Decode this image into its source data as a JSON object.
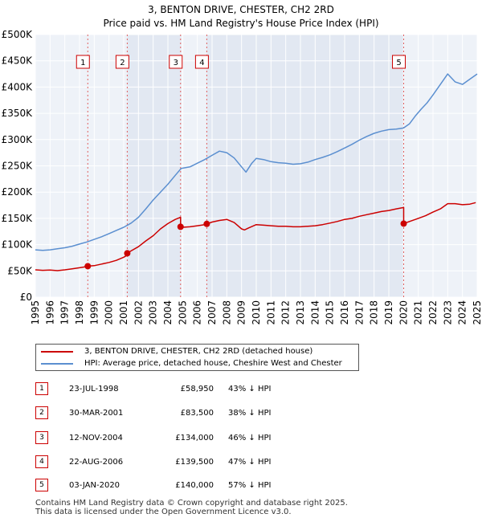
{
  "chart_data": {
    "type": "line",
    "title": "3, BENTON DRIVE, CHESTER, CH2 2RD",
    "subtitle": "Price paid vs. HM Land Registry's House Price Index (HPI)",
    "xlabel": "",
    "ylabel": "",
    "xlim": [
      1995.0,
      2025.0
    ],
    "ylim": [
      0,
      500000
    ],
    "y_ticks": [
      0,
      50000,
      100000,
      150000,
      200000,
      250000,
      300000,
      350000,
      400000,
      450000,
      500000
    ],
    "y_tick_labels": [
      "£0",
      "£50K",
      "£100K",
      "£150K",
      "£200K",
      "£250K",
      "£300K",
      "£350K",
      "£400K",
      "£450K",
      "£500K"
    ],
    "x_ticks": [
      1995,
      1996,
      1997,
      1998,
      1999,
      2000,
      2001,
      2002,
      2003,
      2004,
      2005,
      2006,
      2007,
      2008,
      2009,
      2010,
      2011,
      2012,
      2013,
      2014,
      2015,
      2016,
      2017,
      2018,
      2019,
      2020,
      2021,
      2022,
      2023,
      2024,
      2025
    ],
    "x_tick_labels": [
      "1995",
      "1996",
      "1997",
      "1998",
      "1999",
      "2000",
      "2001",
      "2002",
      "2003",
      "2004",
      "2005",
      "2006",
      "2007",
      "2008",
      "2009",
      "2010",
      "2011",
      "2012",
      "2013",
      "2014",
      "2015",
      "2016",
      "2017",
      "2018",
      "2019",
      "2020",
      "2021",
      "2022",
      "2023",
      "2024",
      "2025"
    ],
    "grid": true,
    "series": [
      {
        "name": "3, BENTON DRIVE, CHESTER, CH2 2RD (detached house)",
        "color": "#cc0000",
        "x": [
          1995.0,
          1995.5,
          1996.0,
          1996.5,
          1997.0,
          1997.5,
          1998.0,
          1998.56,
          1998.56,
          1999.0,
          1999.5,
          2000.0,
          2000.5,
          2001.0,
          2001.24,
          2001.24,
          2001.5,
          2002.0,
          2002.5,
          2003.0,
          2003.5,
          2004.0,
          2004.5,
          2004.86,
          2004.86,
          2005.0,
          2005.5,
          2006.0,
          2006.5,
          2006.64,
          2006.64,
          2007.0,
          2007.5,
          2008.0,
          2008.5,
          2009.0,
          2009.2,
          2009.5,
          2010.0,
          2010.5,
          2011.0,
          2011.5,
          2012.0,
          2012.5,
          2013.0,
          2013.5,
          2014.0,
          2014.5,
          2015.0,
          2015.5,
          2016.0,
          2016.5,
          2017.0,
          2017.5,
          2018.0,
          2018.5,
          2019.0,
          2019.5,
          2019.9,
          2020.01,
          2020.01,
          2020.5,
          2021.0,
          2021.5,
          2022.0,
          2022.5,
          2023.0,
          2023.5,
          2024.0,
          2024.5,
          2024.9
        ],
        "values": [
          52000,
          51000,
          51500,
          50500,
          52000,
          54000,
          56000,
          58500,
          58950,
          60000,
          63000,
          66000,
          70000,
          76000,
          80000,
          83500,
          88000,
          96000,
          107000,
          117000,
          130000,
          140000,
          148000,
          152000,
          134000,
          133000,
          134000,
          136000,
          138000,
          139000,
          139500,
          143000,
          146000,
          148000,
          142000,
          130000,
          128000,
          132000,
          138000,
          137000,
          136000,
          135000,
          135000,
          134000,
          134000,
          135000,
          136000,
          138000,
          141000,
          144000,
          148000,
          150000,
          154000,
          157000,
          160000,
          163000,
          165000,
          168000,
          170000,
          171000,
          140000,
          145000,
          150000,
          155000,
          162000,
          168000,
          178000,
          178000,
          176000,
          177000,
          180000
        ]
      },
      {
        "name": "HPI: Average price, detached house, Cheshire West and Chester",
        "color": "#5b8fd0",
        "x": [
          1995.0,
          1995.5,
          1996.0,
          1996.5,
          1997.0,
          1997.5,
          1998.0,
          1998.5,
          1999.0,
          1999.5,
          2000.0,
          2000.5,
          2001.0,
          2001.5,
          2002.0,
          2002.5,
          2003.0,
          2003.5,
          2004.0,
          2004.5,
          2004.9,
          2005.5,
          2006.0,
          2006.5,
          2007.0,
          2007.5,
          2008.0,
          2008.5,
          2009.0,
          2009.3,
          2009.7,
          2010.0,
          2010.5,
          2011.0,
          2011.5,
          2012.0,
          2012.5,
          2013.0,
          2013.5,
          2014.0,
          2014.5,
          2015.0,
          2015.5,
          2016.0,
          2016.5,
          2017.0,
          2017.5,
          2018.0,
          2018.5,
          2019.0,
          2019.5,
          2020.0,
          2020.4,
          2020.8,
          2021.2,
          2021.6,
          2022.0,
          2022.5,
          2023.0,
          2023.5,
          2024.0,
          2024.5,
          2025.0
        ],
        "values": [
          90000,
          89000,
          90000,
          92000,
          94000,
          97000,
          101000,
          105000,
          110000,
          115000,
          121000,
          127000,
          133000,
          141000,
          152000,
          168000,
          185000,
          200000,
          215000,
          232000,
          245000,
          248000,
          255000,
          262000,
          270000,
          278000,
          275000,
          265000,
          248000,
          238000,
          255000,
          264000,
          262000,
          258000,
          256000,
          255000,
          253000,
          254000,
          257000,
          262000,
          266000,
          271000,
          277000,
          284000,
          291000,
          299000,
          306000,
          312000,
          316000,
          319000,
          320000,
          322000,
          330000,
          345000,
          358000,
          370000,
          385000,
          405000,
          425000,
          410000,
          405000,
          415000,
          425000
        ]
      }
    ],
    "sales": [
      {
        "label": "1",
        "date": "23-JUL-1998",
        "x": 1998.56,
        "price": 58950,
        "price_label": "£58,950",
        "hpi": "43% ↓ HPI"
      },
      {
        "label": "2",
        "date": "30-MAR-2001",
        "x": 2001.24,
        "price": 83500,
        "price_label": "£83,500",
        "hpi": "38% ↓ HPI"
      },
      {
        "label": "3",
        "date": "12-NOV-2004",
        "x": 2004.86,
        "price": 134000,
        "price_label": "£134,000",
        "hpi": "46% ↓ HPI"
      },
      {
        "label": "4",
        "date": "22-AUG-2006",
        "x": 2006.64,
        "price": 139500,
        "price_label": "£139,500",
        "hpi": "47% ↓ HPI"
      },
      {
        "label": "5",
        "date": "03-JAN-2020",
        "x": 2020.01,
        "price": 140000,
        "price_label": "£140,000",
        "hpi": "57% ↓ HPI"
      }
    ]
  },
  "legend": {
    "items": [
      {
        "label": "3, BENTON DRIVE, CHESTER, CH2 2RD (detached house)",
        "color": "#cc0000"
      },
      {
        "label": "HPI: Average price, detached house, Cheshire West and Chester",
        "color": "#5b8fd0"
      }
    ]
  },
  "footer": {
    "line1": "Contains HM Land Registry data © Crown copyright and database right 2025.",
    "line2": "This data is licensed under the Open Government Licence v3.0."
  }
}
